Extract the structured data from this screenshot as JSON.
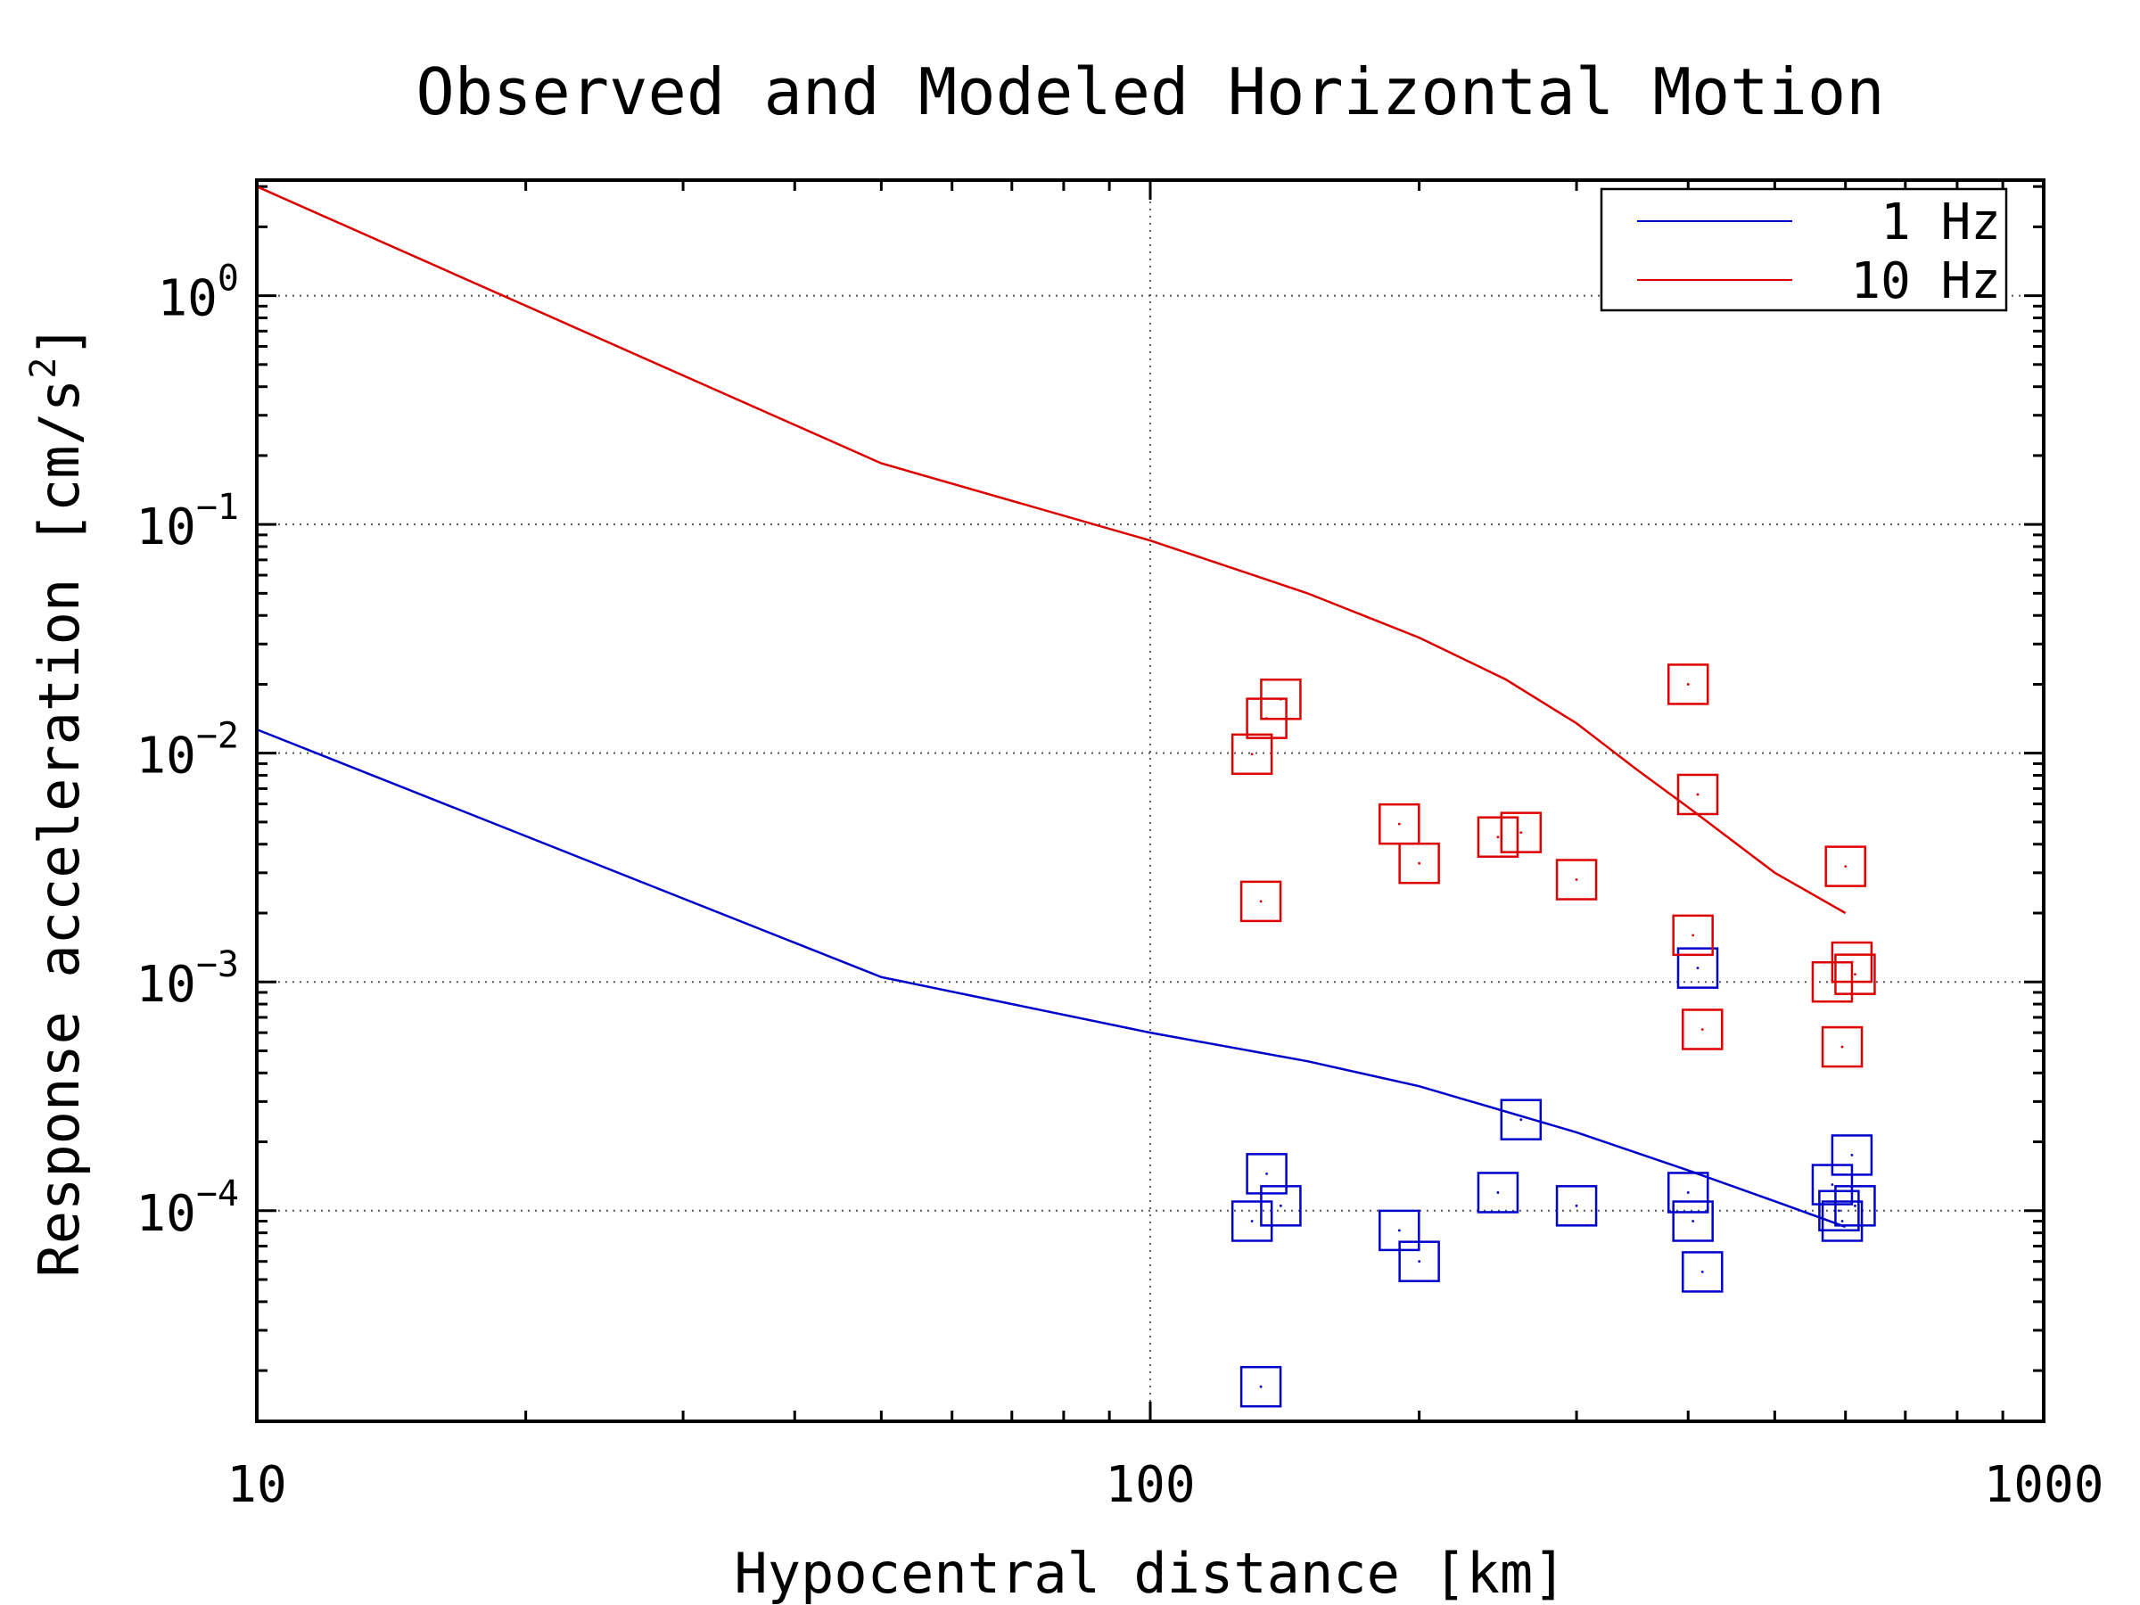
{
  "chart_data": {
    "type": "line",
    "title": "Observed and Modeled Horizontal Motion",
    "xlabel": "Hypocentral distance [km]",
    "ylabel": "Response acceleration [cm/s",
    "ylabel_superscript": "2",
    "ylabel_suffix": "]",
    "xscale": "log",
    "yscale": "log",
    "xlim": [
      10,
      1000
    ],
    "ylim": [
      1.2e-05,
      3.2
    ],
    "grid": true,
    "legend_position": "top-right",
    "x_ticks": [
      {
        "value": 10,
        "label": "10"
      },
      {
        "value": 100,
        "label": "100"
      },
      {
        "value": 1000,
        "label": "1000"
      }
    ],
    "y_ticks": [
      {
        "value": 1,
        "base": "10",
        "exponent": "0"
      },
      {
        "value": 0.1,
        "base": "10",
        "exponent": "−1"
      },
      {
        "value": 0.01,
        "base": "10",
        "exponent": "−2"
      },
      {
        "value": 0.001,
        "base": "10",
        "exponent": "−3"
      },
      {
        "value": 0.0001,
        "base": "10",
        "exponent": "−4"
      }
    ],
    "series": [
      {
        "name": "1 Hz",
        "kind": "line",
        "color": "#0000cc",
        "points": [
          [
            10,
            0.0127
          ],
          [
            50,
            0.00105
          ],
          [
            100,
            0.0006
          ],
          [
            150,
            0.00045
          ],
          [
            200,
            0.00035
          ],
          [
            300,
            0.00022
          ],
          [
            400,
            0.00015
          ],
          [
            500,
            0.00011
          ],
          [
            600,
            8.5e-05
          ]
        ]
      },
      {
        "name": "10 Hz",
        "kind": "line",
        "color": "#dd0000",
        "points": [
          [
            10,
            3.0
          ],
          [
            50,
            0.185
          ],
          [
            100,
            0.085
          ],
          [
            150,
            0.05
          ],
          [
            200,
            0.032
          ],
          [
            250,
            0.021
          ],
          [
            300,
            0.0135
          ],
          [
            350,
            0.0085
          ],
          [
            400,
            0.0058
          ],
          [
            500,
            0.003
          ],
          [
            600,
            0.002
          ]
        ]
      },
      {
        "name": "",
        "kind": "scatter",
        "color": "#0000cc",
        "points": [
          [
            130,
            9e-05
          ],
          [
            133,
            1.7e-05
          ],
          [
            135,
            0.000145
          ],
          [
            140,
            0.000105
          ],
          [
            190,
            8.2e-05
          ],
          [
            200,
            6e-05
          ],
          [
            245,
            0.00012
          ],
          [
            260,
            0.00025
          ],
          [
            300,
            0.000105
          ],
          [
            400,
            0.00012
          ],
          [
            405,
            9e-05
          ],
          [
            410,
            0.00115
          ],
          [
            415,
            5.4e-05
          ],
          [
            580,
            0.00013
          ],
          [
            590,
            0.0001
          ],
          [
            595,
            9e-05
          ],
          [
            610,
            0.000175
          ],
          [
            615,
            0.000105
          ]
        ]
      },
      {
        "name": "",
        "kind": "scatter",
        "color": "#dd0000",
        "points": [
          [
            130,
            0.0099
          ],
          [
            133,
            0.00225
          ],
          [
            135,
            0.0142
          ],
          [
            140,
            0.0172
          ],
          [
            190,
            0.0049
          ],
          [
            200,
            0.0033
          ],
          [
            245,
            0.0043
          ],
          [
            260,
            0.0045
          ],
          [
            300,
            0.0028
          ],
          [
            400,
            0.02
          ],
          [
            405,
            0.0016
          ],
          [
            410,
            0.0066
          ],
          [
            415,
            0.00062
          ],
          [
            580,
            0.001
          ],
          [
            595,
            0.00052
          ],
          [
            600,
            0.0032
          ],
          [
            610,
            0.00122
          ],
          [
            615,
            0.00108
          ]
        ]
      }
    ]
  }
}
